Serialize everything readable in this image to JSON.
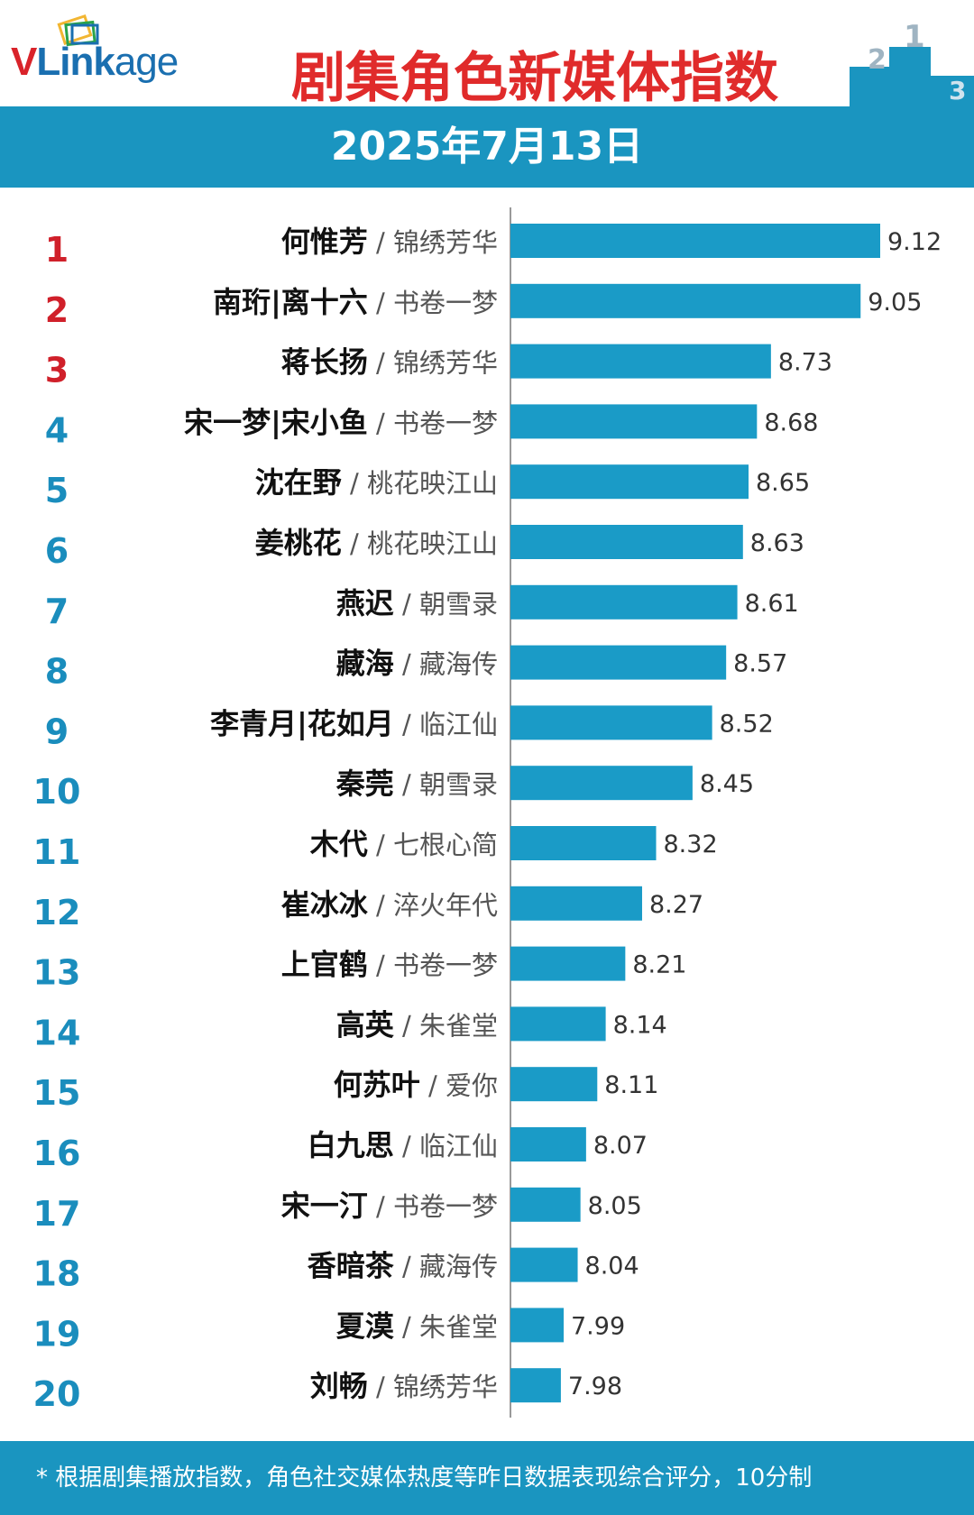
{
  "header": {
    "logo_brand_v": "V",
    "logo_brand_link": "Link",
    "logo_brand_age": "age",
    "title": "剧集角色新媒体指数",
    "podium_digits": [
      "2",
      "1",
      "3"
    ]
  },
  "date_label": "2025年7月13日",
  "footer_note": "* 根据剧集播放指数，角色社交媒体热度等昨日数据表现综合评分，10分制",
  "colors": {
    "bar": "#1a9bc7",
    "band": "#1a95c0",
    "title_red": "#e02b2b",
    "rank_top": "#d0202a",
    "rank_rest": "#1a8dbd"
  },
  "chart_data": {
    "type": "bar",
    "orientation": "horizontal",
    "title": "剧集角色新媒体指数",
    "xlim": [
      7.8,
      9.25
    ],
    "categories": [
      {
        "rank": "1",
        "name": "何惟芳",
        "show": "锦绣芳华"
      },
      {
        "rank": "2",
        "name": "南珩|离十六",
        "show": "书卷一梦"
      },
      {
        "rank": "3",
        "name": "蒋长扬",
        "show": "锦绣芳华"
      },
      {
        "rank": "4",
        "name": "宋一梦|宋小鱼",
        "show": "书卷一梦"
      },
      {
        "rank": "5",
        "name": "沈在野",
        "show": "桃花映江山"
      },
      {
        "rank": "6",
        "name": "姜桃花",
        "show": "桃花映江山"
      },
      {
        "rank": "7",
        "name": "燕迟",
        "show": "朝雪录"
      },
      {
        "rank": "8",
        "name": "藏海",
        "show": "藏海传"
      },
      {
        "rank": "9",
        "name": "李青月|花如月",
        "show": "临江仙"
      },
      {
        "rank": "10",
        "name": "秦莞",
        "show": "朝雪录"
      },
      {
        "rank": "11",
        "name": "木代",
        "show": "七根心简"
      },
      {
        "rank": "12",
        "name": "崔冰冰",
        "show": "淬火年代"
      },
      {
        "rank": "13",
        "name": "上官鹤",
        "show": "书卷一梦"
      },
      {
        "rank": "14",
        "name": "高英",
        "show": "朱雀堂"
      },
      {
        "rank": "15",
        "name": "何苏叶",
        "show": "爱你"
      },
      {
        "rank": "16",
        "name": "白九思",
        "show": "临江仙"
      },
      {
        "rank": "17",
        "name": "宋一汀",
        "show": "书卷一梦"
      },
      {
        "rank": "18",
        "name": "香暗茶",
        "show": "藏海传"
      },
      {
        "rank": "19",
        "name": "夏漠",
        "show": "朱雀堂"
      },
      {
        "rank": "20",
        "name": "刘畅",
        "show": "锦绣芳华"
      }
    ],
    "values": [
      9.12,
      9.05,
      8.73,
      8.68,
      8.65,
      8.63,
      8.61,
      8.57,
      8.52,
      8.45,
      8.32,
      8.27,
      8.21,
      8.14,
      8.11,
      8.07,
      8.05,
      8.04,
      7.99,
      7.98
    ],
    "value_labels": [
      "9.12",
      "9.05",
      "8.73",
      "8.68",
      "8.65",
      "8.63",
      "8.61",
      "8.57",
      "8.52",
      "8.45",
      "8.32",
      "8.27",
      "8.21",
      "8.14",
      "8.11",
      "8.07",
      "8.05",
      "8.04",
      "7.99",
      "7.98"
    ],
    "separator": "/",
    "grid": false,
    "legend": "none"
  }
}
